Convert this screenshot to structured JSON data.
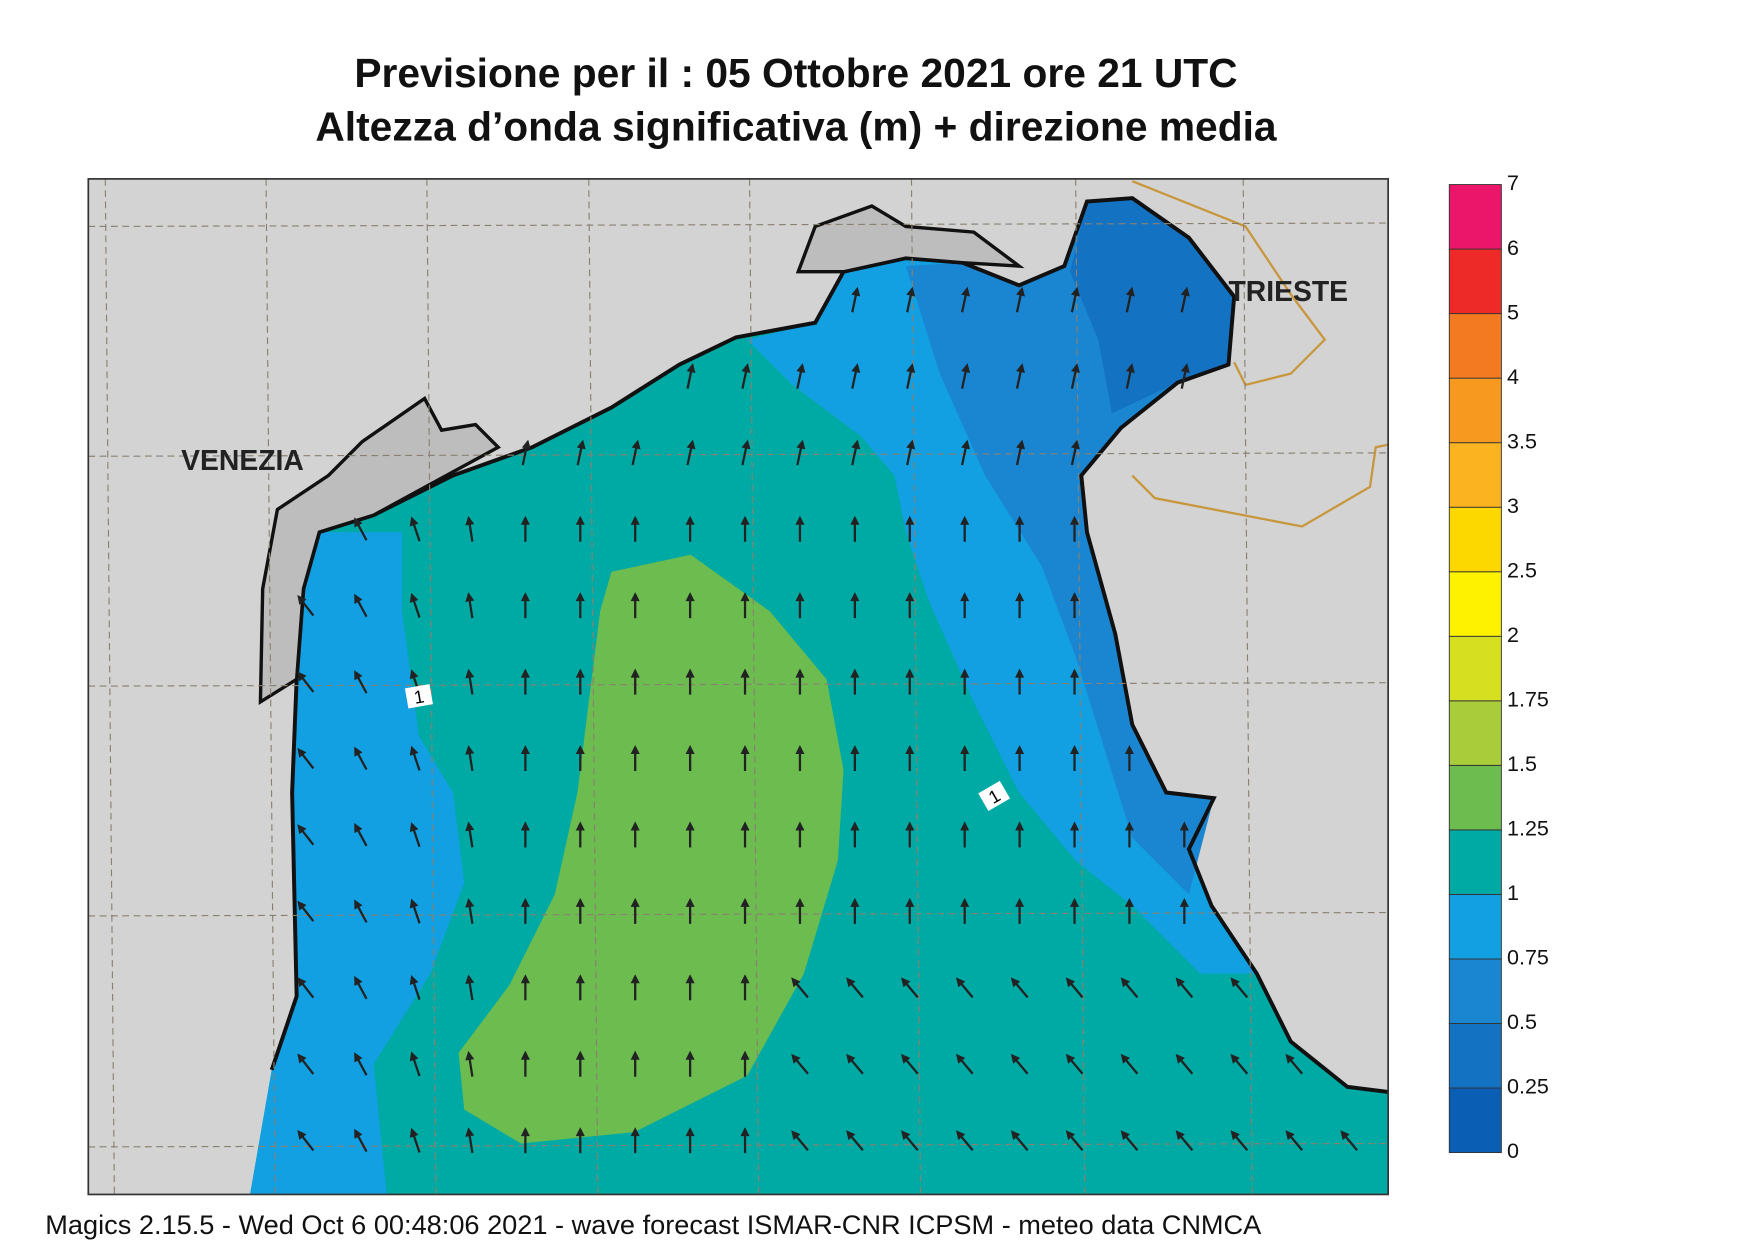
{
  "header": {
    "title_lines": [
      "Previsione per il  :  05  Ottobre  2021   ore 21 UTC",
      "Altezza d’onda significativa (m) + direzione media"
    ]
  },
  "map": {
    "labels": [
      "VENEZIA",
      "TRIESTE"
    ],
    "contour_labels": [
      "1",
      "1"
    ]
  },
  "legend": {
    "levels": [
      0,
      0.25,
      0.5,
      0.75,
      1,
      1.25,
      1.5,
      1.75,
      2,
      2.5,
      3,
      3.5,
      4,
      5,
      6,
      7
    ],
    "colors": [
      "#0a5eb4",
      "#1472c2",
      "#1a86d2",
      "#12a0e2",
      "#00aaa4",
      "#6cbc50",
      "#a9cc3a",
      "#d6df20",
      "#fff200",
      "#fcd700",
      "#fbb41f",
      "#f7991f",
      "#f47a22",
      "#ed2a27",
      "#eb166a"
    ]
  },
  "footer": "Magics 2.15.5 - Wed Oct  6 00:48:06 2021 - wave forecast  ISMAR-CNR  ICPSM - meteo data   CNMCA"
}
